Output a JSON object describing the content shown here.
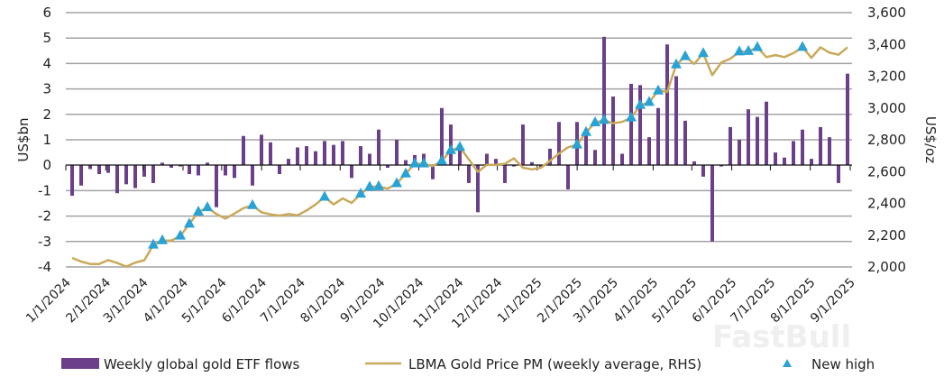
{
  "chart_data": {
    "type": "bar+line",
    "title": "",
    "ylabel_left": "US$bn",
    "ylabel_right": "US$/oz",
    "ylim_left": [
      -4,
      6
    ],
    "ylim_right": [
      2000,
      3600
    ],
    "yticks_left": [
      "6",
      "5",
      "4",
      "3",
      "2",
      "1",
      "0",
      "-1",
      "-2",
      "-3",
      "-4"
    ],
    "yticks_right": [
      "3,600",
      "3,400",
      "3,200",
      "3,000",
      "2,800",
      "2,600",
      "2,400",
      "2,200",
      "2,000"
    ],
    "xticks": [
      "1/1/2024",
      "2/1/2024",
      "3/1/2024",
      "4/1/2024",
      "5/1/2024",
      "6/1/2024",
      "7/1/2024",
      "8/1/2024",
      "9/1/2024",
      "10/1/2024",
      "11/1/2024",
      "12/1/2024",
      "1/1/2025",
      "2/1/2025",
      "3/1/2025",
      "4/1/2025",
      "5/1/2025",
      "6/1/2025",
      "7/1/2025",
      "8/1/2025",
      "9/1/2025"
    ],
    "grid": true,
    "legend_position": "bottom",
    "series": [
      {
        "name": "Weekly global gold ETF flows",
        "type": "bar",
        "axis": "left",
        "color": "#6b3f8a",
        "values": [
          -1.2,
          -0.8,
          -0.15,
          -0.35,
          -0.3,
          -1.1,
          -0.75,
          -0.9,
          -0.45,
          -0.7,
          0.1,
          -0.1,
          -0.05,
          -0.35,
          -0.4,
          0.1,
          -1.65,
          -0.4,
          -0.5,
          1.15,
          -0.8,
          1.2,
          0.9,
          -0.35,
          0.25,
          0.7,
          0.75,
          0.55,
          0.95,
          0.8,
          0.95,
          -0.5,
          0.75,
          0.45,
          1.4,
          -0.1,
          1.0,
          0.2,
          0.4,
          0.45,
          -0.55,
          2.25,
          1.6,
          0.65,
          -0.7,
          -1.85,
          0.45,
          0.25,
          -0.7,
          -0.05,
          1.6,
          0.12,
          -0.1,
          0.65,
          1.7,
          -0.95,
          1.7,
          1.2,
          0.6,
          5.05,
          2.7,
          0.45,
          3.2,
          3.15,
          1.1,
          2.25,
          4.75,
          3.5,
          1.75,
          0.15,
          -0.45,
          -3.0,
          -0.05,
          1.5,
          1.0,
          2.2,
          1.9,
          2.5,
          0.5,
          0.3,
          0.95,
          1.4,
          0.25,
          1.5,
          1.1,
          -0.7,
          3.6
        ]
      },
      {
        "name": "LBMA Gold Price PM (weekly average, RHS)",
        "type": "line",
        "axis": "right",
        "color": "#c9a95a",
        "values": [
          2057,
          2034,
          2019,
          2019,
          2043,
          2025,
          2002,
          2028,
          2042,
          2138,
          2166,
          2166,
          2195,
          2270,
          2346,
          2374,
          2333,
          2304,
          2336,
          2370,
          2387,
          2344,
          2331,
          2323,
          2333,
          2325,
          2355,
          2393,
          2440,
          2393,
          2431,
          2403,
          2459,
          2503,
          2506,
          2493,
          2525,
          2586,
          2649,
          2649,
          2635,
          2667,
          2733,
          2753,
          2677,
          2598,
          2643,
          2643,
          2649,
          2683,
          2624,
          2614,
          2624,
          2667,
          2714,
          2753,
          2768,
          2847,
          2908,
          2923,
          2904,
          2913,
          2938,
          3017,
          3036,
          3108,
          3102,
          3272,
          3324,
          3278,
          3343,
          3206,
          3286,
          3310,
          3354,
          3357,
          3381,
          3320,
          3333,
          3320,
          3345,
          3382,
          3316,
          3382,
          3348,
          3335,
          3382
        ]
      },
      {
        "name": "New high",
        "type": "scatter",
        "marker": "triangle",
        "axis": "right",
        "color": "#29a3d6",
        "week_indices": [
          9,
          10,
          12,
          13,
          14,
          15,
          20,
          28,
          32,
          33,
          34,
          36,
          37,
          38,
          39,
          41,
          42,
          43,
          56,
          57,
          58,
          59,
          62,
          63,
          64,
          65,
          67,
          68,
          70,
          74,
          75,
          76,
          81
        ]
      }
    ]
  },
  "watermark": "FastBull"
}
